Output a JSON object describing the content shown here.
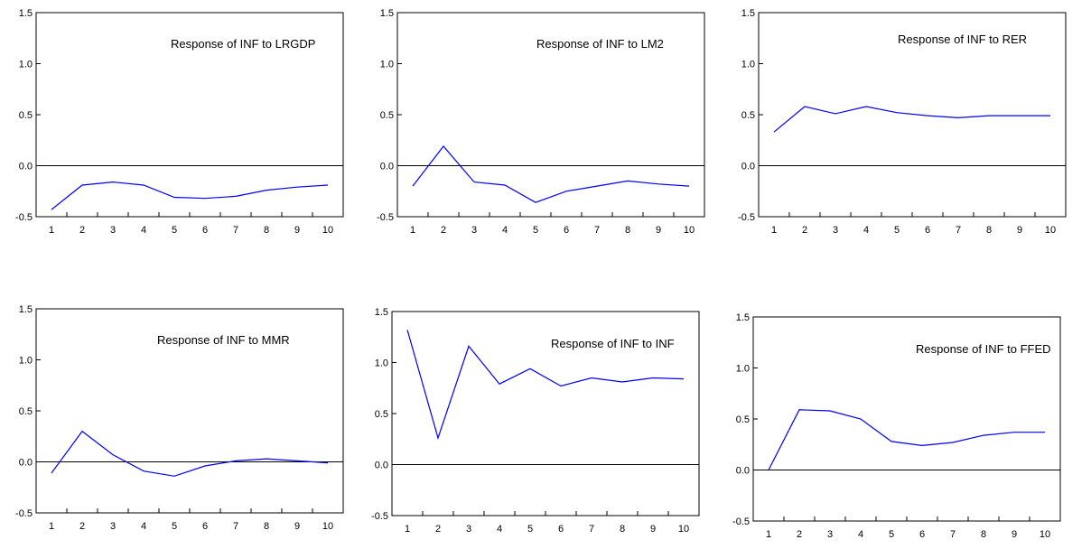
{
  "chart_data": [
    {
      "type": "line",
      "title": "Response of INF to LRGDP",
      "categories": [
        "1",
        "2",
        "3",
        "4",
        "5",
        "6",
        "7",
        "8",
        "9",
        "10"
      ],
      "series": [
        {
          "values": [
            -0.43,
            -0.19,
            -0.16,
            -0.19,
            -0.31,
            -0.32,
            -0.3,
            -0.24,
            -0.21,
            -0.19
          ]
        }
      ],
      "ylim": [
        -0.5,
        1.5
      ],
      "yticks": [
        "-0.5",
        "0.0",
        "0.5",
        "1.0",
        "1.5"
      ],
      "zero_line": true,
      "colors": {
        "series": "#0000ff",
        "axis": "#000000"
      }
    },
    {
      "type": "line",
      "title": "Response of INF to LM2",
      "categories": [
        "1",
        "2",
        "3",
        "4",
        "5",
        "6",
        "7",
        "8",
        "9",
        "10"
      ],
      "series": [
        {
          "values": [
            -0.2,
            0.19,
            -0.16,
            -0.19,
            -0.36,
            -0.25,
            -0.2,
            -0.15,
            -0.18,
            -0.2
          ]
        }
      ],
      "ylim": [
        -0.5,
        1.5
      ],
      "yticks": [
        "-0.5",
        "0.0",
        "0.5",
        "1.0",
        "1.5"
      ],
      "zero_line": true,
      "colors": {
        "series": "#0000ff",
        "axis": "#000000"
      }
    },
    {
      "type": "line",
      "title": "Response of INF to RER",
      "categories": [
        "1",
        "2",
        "3",
        "4",
        "5",
        "6",
        "7",
        "8",
        "9",
        "10"
      ],
      "series": [
        {
          "values": [
            0.33,
            0.58,
            0.51,
            0.58,
            0.52,
            0.49,
            0.47,
            0.49,
            0.49,
            0.49
          ]
        }
      ],
      "ylim": [
        -0.5,
        1.5
      ],
      "yticks": [
        "-0.5",
        "0.0",
        "0.5",
        "1.0",
        "1.5"
      ],
      "zero_line": true,
      "colors": {
        "series": "#0000ff",
        "axis": "#000000"
      }
    },
    {
      "type": "line",
      "title": "Response of INF to MMR",
      "categories": [
        "1",
        "2",
        "3",
        "4",
        "5",
        "6",
        "7",
        "8",
        "9",
        "10"
      ],
      "series": [
        {
          "values": [
            -0.11,
            0.3,
            0.07,
            -0.09,
            -0.14,
            -0.04,
            0.01,
            0.03,
            0.01,
            -0.01
          ]
        }
      ],
      "ylim": [
        -0.5,
        1.5
      ],
      "yticks": [
        "-0.5",
        "0.0",
        "0.5",
        "1.0",
        "1.5"
      ],
      "zero_line": true,
      "colors": {
        "series": "#0000ff",
        "axis": "#000000"
      }
    },
    {
      "type": "line",
      "title": "Response of INF to INF",
      "categories": [
        "1",
        "2",
        "3",
        "4",
        "5",
        "6",
        "7",
        "8",
        "9",
        "10"
      ],
      "series": [
        {
          "values": [
            1.32,
            0.26,
            1.16,
            0.79,
            0.94,
            0.77,
            0.85,
            0.81,
            0.85,
            0.84
          ]
        }
      ],
      "ylim": [
        -0.5,
        1.5
      ],
      "yticks": [
        "-0.5",
        "0.0",
        "0.5",
        "1.0",
        "1.5"
      ],
      "zero_line": true,
      "colors": {
        "series": "#0000ff",
        "axis": "#000000"
      }
    },
    {
      "type": "line",
      "title": "Response of INF to FFED",
      "categories": [
        "1",
        "2",
        "3",
        "4",
        "5",
        "6",
        "7",
        "8",
        "9",
        "10"
      ],
      "series": [
        {
          "values": [
            0.0,
            0.59,
            0.58,
            0.5,
            0.28,
            0.24,
            0.27,
            0.34,
            0.37,
            0.37
          ]
        }
      ],
      "ylim": [
        -0.5,
        1.5
      ],
      "yticks": [
        "-0.5",
        "0.0",
        "0.5",
        "1.0",
        "1.5"
      ],
      "zero_line": true,
      "colors": {
        "series": "#0000ff",
        "axis": "#000000"
      }
    }
  ]
}
